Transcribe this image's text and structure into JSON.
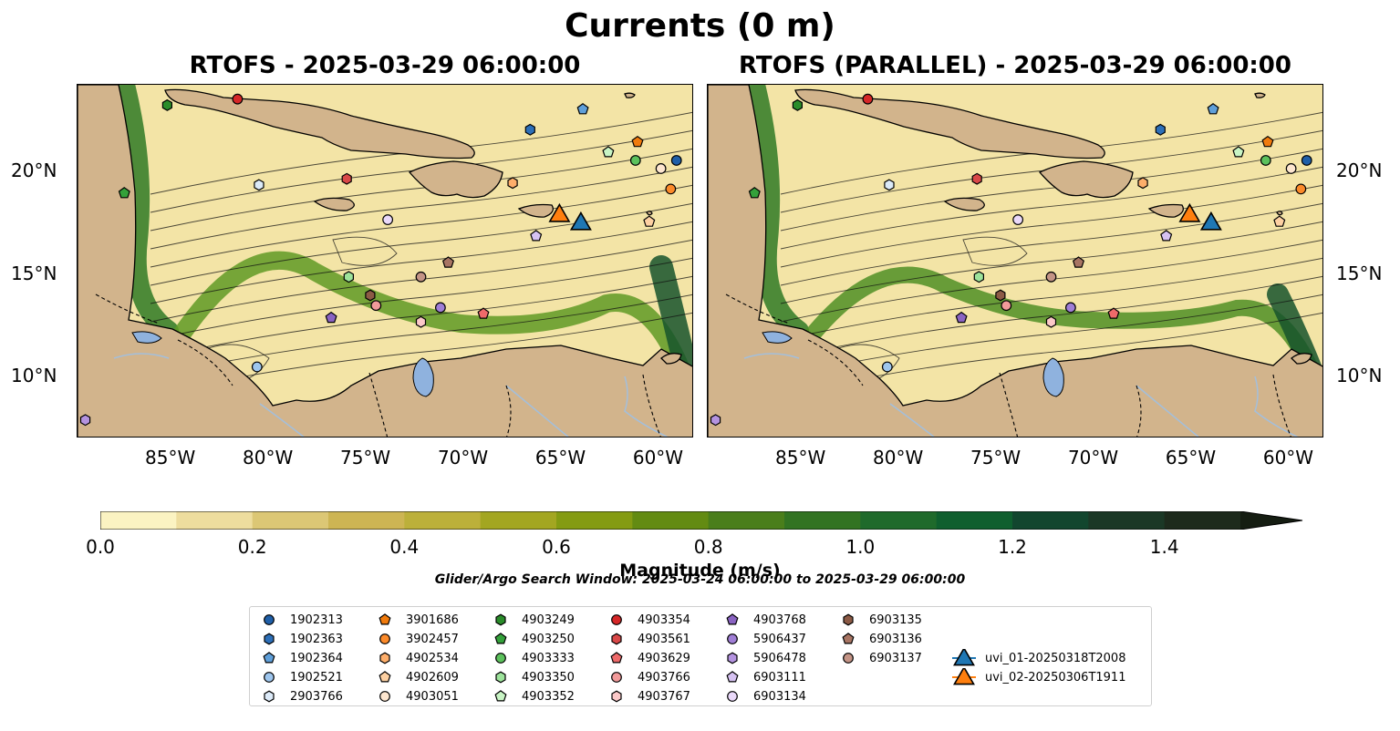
{
  "figure": {
    "title": "Currents (0 m)",
    "panels": [
      {
        "title": "RTOFS - 2025-03-29 06:00:00"
      },
      {
        "title": "RTOFS (PARALLEL) - 2025-03-29 06:00:00"
      }
    ],
    "lon_ticks": [
      "85°W",
      "80°W",
      "75°W",
      "70°W",
      "65°W",
      "60°W"
    ],
    "lat_ticks": [
      "20°N",
      "15°N",
      "10°N"
    ],
    "map_extent": {
      "lon": [
        -89.8,
        -58.2
      ],
      "lat": [
        7.0,
        24.3
      ]
    },
    "colors": {
      "land": "#d2b48c",
      "lake": "#8fb2de",
      "river": "#a3bfdc"
    },
    "colorbar": {
      "label": "Magnitude (m/s)",
      "ticks": [
        "0.0",
        "0.2",
        "0.4",
        "0.6",
        "0.8",
        "1.0",
        "1.2",
        "1.4"
      ],
      "colors": [
        "#fbf3c2",
        "#eedd9e",
        "#dcc775",
        "#cdb553",
        "#bcb03a",
        "#a3a621",
        "#849b12",
        "#638b12",
        "#4a7e1b",
        "#327322",
        "#1f6a2b",
        "#0f5f2e",
        "#12462e",
        "#1b3826",
        "#1d2a1c",
        "#151d12"
      ],
      "extend": "max"
    },
    "search_window": "Glider/Argo Search Window: 2025-03-24 06:00:00 to 2025-03-29 06:00:00"
  },
  "legend": [
    {
      "label": "1902313",
      "marker": "circle",
      "color": "#1f5fa8"
    },
    {
      "label": "1902363",
      "marker": "hexagon",
      "color": "#2d6fb8"
    },
    {
      "label": "1902364",
      "marker": "pentagon",
      "color": "#5f9fd9"
    },
    {
      "label": "1902521",
      "marker": "circle",
      "color": "#9ec6ee"
    },
    {
      "label": "2903766",
      "marker": "hexagon",
      "color": "#dceaf8"
    },
    {
      "label": "3901686",
      "marker": "pentagon",
      "color": "#f07a0c"
    },
    {
      "label": "3902457",
      "marker": "circle",
      "color": "#fb8a2a"
    },
    {
      "label": "4902534",
      "marker": "hexagon",
      "color": "#fdae6b"
    },
    {
      "label": "4902609",
      "marker": "pentagon",
      "color": "#fdd0a2"
    },
    {
      "label": "4903051",
      "marker": "circle",
      "color": "#fde6cf"
    },
    {
      "label": "4903249",
      "marker": "hexagon",
      "color": "#2a8c2a"
    },
    {
      "label": "4903250",
      "marker": "pentagon",
      "color": "#34a13a"
    },
    {
      "label": "4903333",
      "marker": "circle",
      "color": "#5cc15c"
    },
    {
      "label": "4903350",
      "marker": "hexagon",
      "color": "#9de39b"
    },
    {
      "label": "4903352",
      "marker": "pentagon",
      "color": "#c8f4c4"
    },
    {
      "label": "4903354",
      "marker": "circle",
      "color": "#d62728"
    },
    {
      "label": "4903561",
      "marker": "hexagon",
      "color": "#d94848"
    },
    {
      "label": "4903629",
      "marker": "pentagon",
      "color": "#ee6a6a"
    },
    {
      "label": "4903766",
      "marker": "circle",
      "color": "#f29a9a"
    },
    {
      "label": "4903767",
      "marker": "hexagon",
      "color": "#fbc8c8"
    },
    {
      "label": "4903768",
      "marker": "pentagon",
      "color": "#8a63c2"
    },
    {
      "label": "5906437",
      "marker": "circle",
      "color": "#a07ed6"
    },
    {
      "label": "5906478",
      "marker": "hexagon",
      "color": "#b493e0"
    },
    {
      "label": "6903111",
      "marker": "pentagon",
      "color": "#d6c2f2"
    },
    {
      "label": "6903134",
      "marker": "circle",
      "color": "#ead9fa"
    },
    {
      "label": "6903135",
      "marker": "hexagon",
      "color": "#8c5a45"
    },
    {
      "label": "6903136",
      "marker": "pentagon",
      "color": "#a87563"
    },
    {
      "label": "6903137",
      "marker": "circle",
      "color": "#c49486"
    },
    {
      "label": "uvi_01-20250318T2008",
      "marker": "triangle",
      "color": "#1f77b4"
    },
    {
      "label": "uvi_02-20250306T1911",
      "marker": "triangle",
      "color": "#ff7f0e"
    }
  ],
  "floats": [
    {
      "label": "1902313",
      "lon": -59.1,
      "lat": 20.6
    },
    {
      "label": "1902363",
      "lon": -66.6,
      "lat": 22.1
    },
    {
      "label": "1902364",
      "lon": -63.9,
      "lat": 23.1
    },
    {
      "label": "1902521",
      "lon": -80.6,
      "lat": 10.5
    },
    {
      "label": "2903766",
      "lon": -80.5,
      "lat": 19.4
    },
    {
      "label": "3901686",
      "lon": -61.1,
      "lat": 21.5
    },
    {
      "label": "3902457",
      "lon": -59.4,
      "lat": 19.2
    },
    {
      "label": "4902534",
      "lon": -67.5,
      "lat": 19.5
    },
    {
      "label": "4902609",
      "lon": -60.5,
      "lat": 17.6
    },
    {
      "label": "4903051",
      "lon": -59.9,
      "lat": 20.2
    },
    {
      "label": "4903249",
      "lon": -85.2,
      "lat": 23.3
    },
    {
      "label": "4903250",
      "lon": -87.4,
      "lat": 19.0
    },
    {
      "label": "4903333",
      "lon": -61.2,
      "lat": 20.6
    },
    {
      "label": "4903350",
      "lon": -75.9,
      "lat": 14.9
    },
    {
      "label": "4903352",
      "lon": -62.6,
      "lat": 21.0
    },
    {
      "label": "4903354",
      "lon": -81.6,
      "lat": 23.6
    },
    {
      "label": "4903561",
      "lon": -76.0,
      "lat": 19.7
    },
    {
      "label": "4903629",
      "lon": -69.0,
      "lat": 13.1
    },
    {
      "label": "4903766",
      "lon": -74.5,
      "lat": 13.5
    },
    {
      "label": "4903767",
      "lon": -72.2,
      "lat": 12.7
    },
    {
      "label": "4903768",
      "lon": -76.8,
      "lat": 12.9
    },
    {
      "label": "5906437",
      "lon": -71.2,
      "lat": 13.4
    },
    {
      "label": "5906478",
      "lon": -89.4,
      "lat": 7.9
    },
    {
      "label": "6903111",
      "lon": -66.3,
      "lat": 16.9
    },
    {
      "label": "6903134",
      "lon": -73.9,
      "lat": 17.7
    },
    {
      "label": "6903135",
      "lon": -74.8,
      "lat": 14.0
    },
    {
      "label": "6903136",
      "lon": -70.8,
      "lat": 15.6
    },
    {
      "label": "6903137",
      "lon": -72.2,
      "lat": 14.9
    },
    {
      "label": "uvi_01-20250318T2008",
      "lon": -64.0,
      "lat": 17.6
    },
    {
      "label": "uvi_02-20250306T1911",
      "lon": -65.1,
      "lat": 18.0
    }
  ]
}
